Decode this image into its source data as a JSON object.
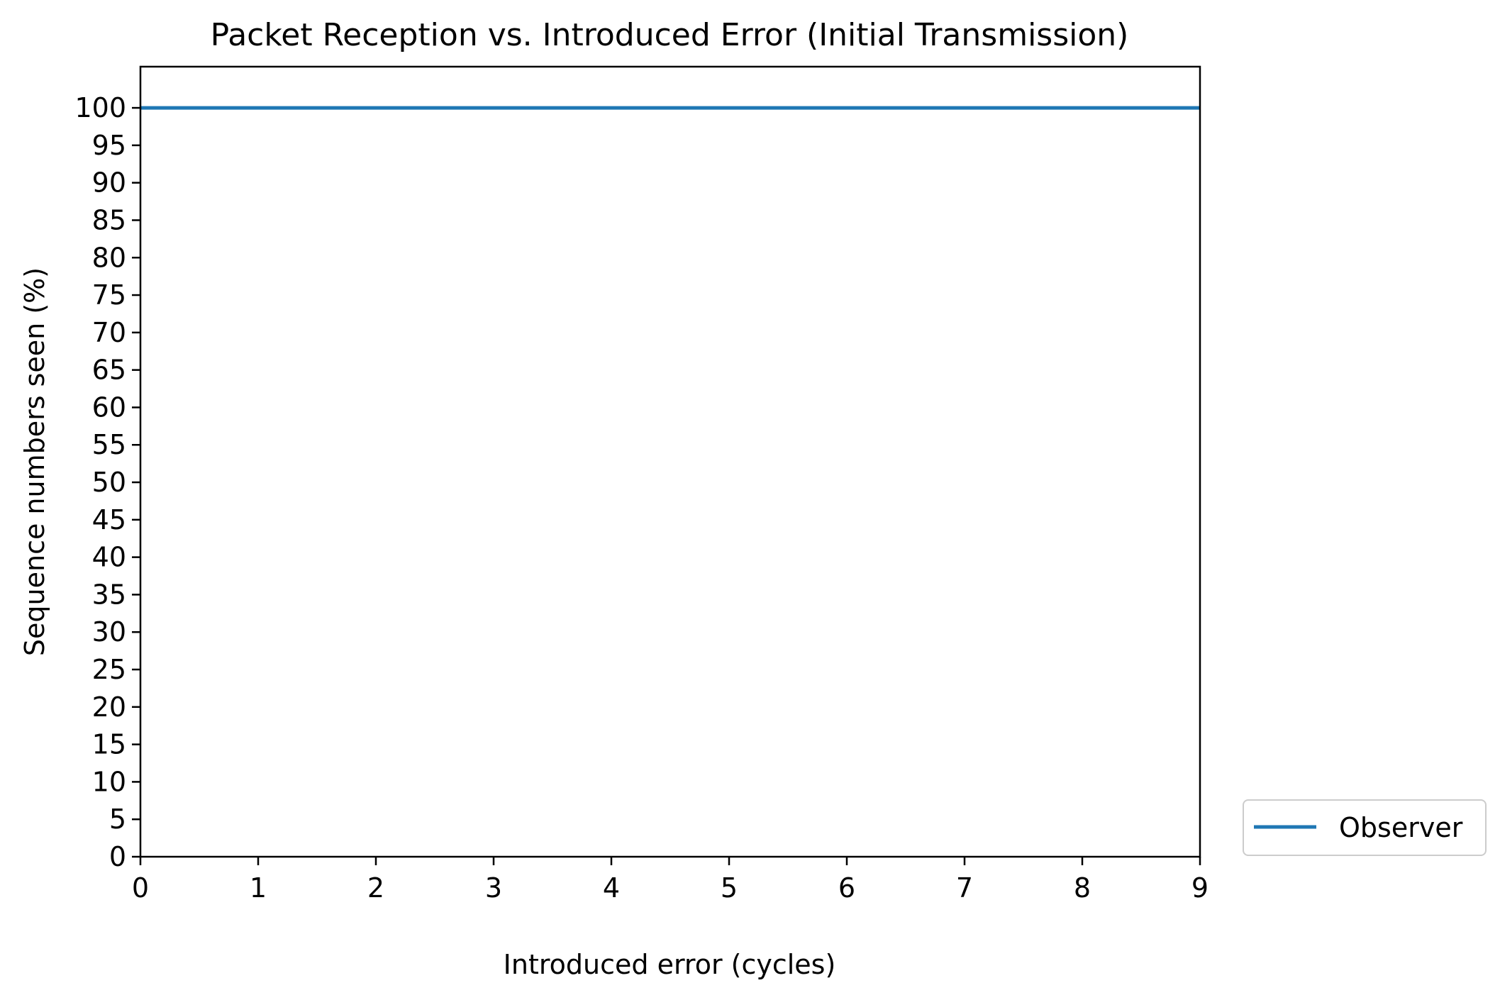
{
  "chart_data": {
    "type": "line",
    "title": "Packet Reception vs. Introduced Error (Initial Transmission)",
    "xlabel": "Introduced error (cycles)",
    "ylabel": "Sequence numbers seen (%)",
    "xlim": [
      0,
      9
    ],
    "ylim": [
      0,
      105.5
    ],
    "xticks": [
      0,
      1,
      2,
      3,
      4,
      5,
      6,
      7,
      8,
      9
    ],
    "yticks": [
      0,
      5,
      10,
      15,
      20,
      25,
      30,
      35,
      40,
      45,
      50,
      55,
      60,
      65,
      70,
      75,
      80,
      85,
      90,
      95,
      100
    ],
    "grid": false,
    "legend_position": "outside-right-bottom",
    "series": [
      {
        "name": "Observer",
        "color": "#1f77b4",
        "x": [
          0,
          1,
          2,
          3,
          4,
          5,
          6,
          7,
          8,
          9
        ],
        "y": [
          100,
          100,
          100,
          100,
          100,
          100,
          100,
          100,
          100,
          100
        ]
      }
    ]
  }
}
